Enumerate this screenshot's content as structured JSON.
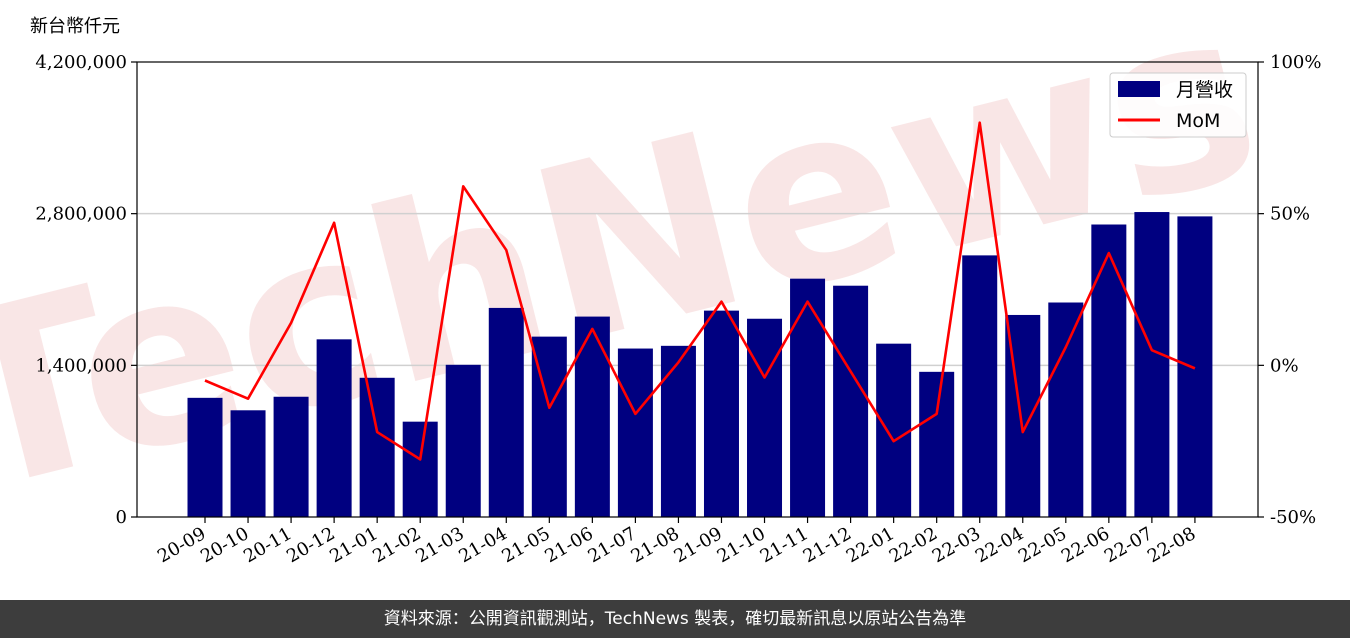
{
  "chart_data": {
    "type": "bar",
    "unit_label": "新台幣仟元",
    "categories": [
      "20-09",
      "20-10",
      "20-11",
      "20-12",
      "21-01",
      "21-02",
      "21-03",
      "21-04",
      "21-05",
      "21-06",
      "21-07",
      "21-08",
      "21-09",
      "21-10",
      "21-11",
      "21-12",
      "22-01",
      "22-02",
      "22-03",
      "22-04",
      "22-05",
      "22-06",
      "22-07",
      "22-08"
    ],
    "series": [
      {
        "name": "月營收",
        "type": "bar",
        "axis": "left",
        "color": "#000080",
        "values": [
          1100000,
          985000,
          1110000,
          1640000,
          1285000,
          880000,
          1405000,
          1930000,
          1665000,
          1850000,
          1555000,
          1580000,
          1905000,
          1830000,
          2200000,
          2135000,
          1600000,
          1340000,
          2415000,
          1865000,
          1980000,
          2700000,
          2815000,
          2775000
        ]
      },
      {
        "name": "MoM",
        "type": "line",
        "axis": "right",
        "color": "#ff0000",
        "values": [
          -5,
          -11,
          14,
          47,
          -22,
          -31,
          59,
          38,
          -14,
          12,
          -16,
          1,
          21,
          -4,
          21,
          -2,
          -25,
          -16,
          80,
          -22,
          6,
          37,
          5,
          -1
        ]
      }
    ],
    "left_axis": {
      "ylim": [
        0,
        4200000
      ],
      "ticks": [
        "0",
        "1,400,000",
        "2,800,000",
        "4,200,000"
      ],
      "tick_values": [
        0,
        1400000,
        2800000,
        4200000
      ]
    },
    "right_axis": {
      "ylim": [
        -50,
        100
      ],
      "ticks": [
        "-50%",
        "0%",
        "50%",
        "100%"
      ],
      "tick_values": [
        -50,
        0,
        50,
        100
      ]
    },
    "grid": "horizontal",
    "legend_position": "top-right",
    "watermark": "TechNews"
  },
  "footer": {
    "source_text": "資料來源：公開資訊觀測站，TechNews 製表，確切最新訊息以原站公告為準"
  }
}
